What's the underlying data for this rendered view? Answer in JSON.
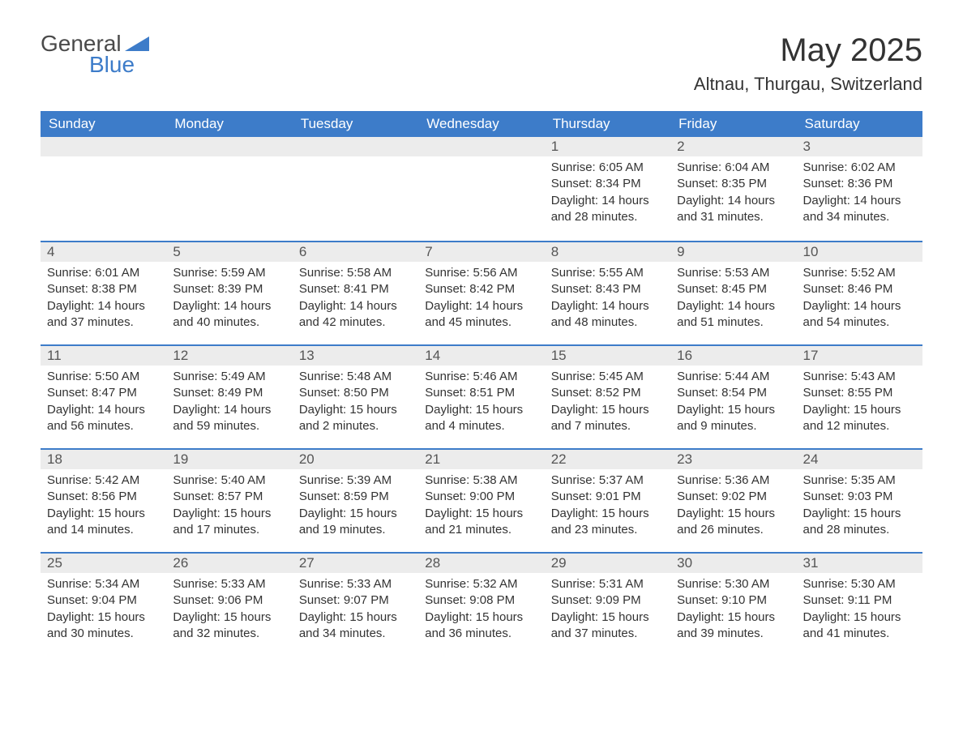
{
  "logo": {
    "text1": "General",
    "text2": "Blue",
    "triangle_color": "#3d7cc9"
  },
  "title": "May 2025",
  "location": "Altnau, Thurgau, Switzerland",
  "colors": {
    "header_bg": "#3d7cc9",
    "header_text": "#ffffff",
    "daynum_bg": "#ececec",
    "border_top": "#3d7cc9",
    "body_text": "#333333",
    "background": "#ffffff"
  },
  "weekdays": [
    "Sunday",
    "Monday",
    "Tuesday",
    "Wednesday",
    "Thursday",
    "Friday",
    "Saturday"
  ],
  "first_weekday_index": 4,
  "days": [
    {
      "n": 1,
      "sunrise": "6:05 AM",
      "sunset": "8:34 PM",
      "daylight": "14 hours and 28 minutes."
    },
    {
      "n": 2,
      "sunrise": "6:04 AM",
      "sunset": "8:35 PM",
      "daylight": "14 hours and 31 minutes."
    },
    {
      "n": 3,
      "sunrise": "6:02 AM",
      "sunset": "8:36 PM",
      "daylight": "14 hours and 34 minutes."
    },
    {
      "n": 4,
      "sunrise": "6:01 AM",
      "sunset": "8:38 PM",
      "daylight": "14 hours and 37 minutes."
    },
    {
      "n": 5,
      "sunrise": "5:59 AM",
      "sunset": "8:39 PM",
      "daylight": "14 hours and 40 minutes."
    },
    {
      "n": 6,
      "sunrise": "5:58 AM",
      "sunset": "8:41 PM",
      "daylight": "14 hours and 42 minutes."
    },
    {
      "n": 7,
      "sunrise": "5:56 AM",
      "sunset": "8:42 PM",
      "daylight": "14 hours and 45 minutes."
    },
    {
      "n": 8,
      "sunrise": "5:55 AM",
      "sunset": "8:43 PM",
      "daylight": "14 hours and 48 minutes."
    },
    {
      "n": 9,
      "sunrise": "5:53 AM",
      "sunset": "8:45 PM",
      "daylight": "14 hours and 51 minutes."
    },
    {
      "n": 10,
      "sunrise": "5:52 AM",
      "sunset": "8:46 PM",
      "daylight": "14 hours and 54 minutes."
    },
    {
      "n": 11,
      "sunrise": "5:50 AM",
      "sunset": "8:47 PM",
      "daylight": "14 hours and 56 minutes."
    },
    {
      "n": 12,
      "sunrise": "5:49 AM",
      "sunset": "8:49 PM",
      "daylight": "14 hours and 59 minutes."
    },
    {
      "n": 13,
      "sunrise": "5:48 AM",
      "sunset": "8:50 PM",
      "daylight": "15 hours and 2 minutes."
    },
    {
      "n": 14,
      "sunrise": "5:46 AM",
      "sunset": "8:51 PM",
      "daylight": "15 hours and 4 minutes."
    },
    {
      "n": 15,
      "sunrise": "5:45 AM",
      "sunset": "8:52 PM",
      "daylight": "15 hours and 7 minutes."
    },
    {
      "n": 16,
      "sunrise": "5:44 AM",
      "sunset": "8:54 PM",
      "daylight": "15 hours and 9 minutes."
    },
    {
      "n": 17,
      "sunrise": "5:43 AM",
      "sunset": "8:55 PM",
      "daylight": "15 hours and 12 minutes."
    },
    {
      "n": 18,
      "sunrise": "5:42 AM",
      "sunset": "8:56 PM",
      "daylight": "15 hours and 14 minutes."
    },
    {
      "n": 19,
      "sunrise": "5:40 AM",
      "sunset": "8:57 PM",
      "daylight": "15 hours and 17 minutes."
    },
    {
      "n": 20,
      "sunrise": "5:39 AM",
      "sunset": "8:59 PM",
      "daylight": "15 hours and 19 minutes."
    },
    {
      "n": 21,
      "sunrise": "5:38 AM",
      "sunset": "9:00 PM",
      "daylight": "15 hours and 21 minutes."
    },
    {
      "n": 22,
      "sunrise": "5:37 AM",
      "sunset": "9:01 PM",
      "daylight": "15 hours and 23 minutes."
    },
    {
      "n": 23,
      "sunrise": "5:36 AM",
      "sunset": "9:02 PM",
      "daylight": "15 hours and 26 minutes."
    },
    {
      "n": 24,
      "sunrise": "5:35 AM",
      "sunset": "9:03 PM",
      "daylight": "15 hours and 28 minutes."
    },
    {
      "n": 25,
      "sunrise": "5:34 AM",
      "sunset": "9:04 PM",
      "daylight": "15 hours and 30 minutes."
    },
    {
      "n": 26,
      "sunrise": "5:33 AM",
      "sunset": "9:06 PM",
      "daylight": "15 hours and 32 minutes."
    },
    {
      "n": 27,
      "sunrise": "5:33 AM",
      "sunset": "9:07 PM",
      "daylight": "15 hours and 34 minutes."
    },
    {
      "n": 28,
      "sunrise": "5:32 AM",
      "sunset": "9:08 PM",
      "daylight": "15 hours and 36 minutes."
    },
    {
      "n": 29,
      "sunrise": "5:31 AM",
      "sunset": "9:09 PM",
      "daylight": "15 hours and 37 minutes."
    },
    {
      "n": 30,
      "sunrise": "5:30 AM",
      "sunset": "9:10 PM",
      "daylight": "15 hours and 39 minutes."
    },
    {
      "n": 31,
      "sunrise": "5:30 AM",
      "sunset": "9:11 PM",
      "daylight": "15 hours and 41 minutes."
    }
  ],
  "labels": {
    "sunrise": "Sunrise:",
    "sunset": "Sunset:",
    "daylight": "Daylight:"
  }
}
